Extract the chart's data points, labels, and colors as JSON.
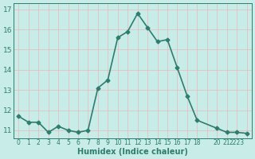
{
  "x": [
    0,
    1,
    2,
    3,
    4,
    5,
    6,
    7,
    8,
    9,
    10,
    11,
    12,
    13,
    14,
    15,
    16,
    17,
    18,
    20,
    21,
    22,
    23
  ],
  "y": [
    11.7,
    11.4,
    11.4,
    10.9,
    11.2,
    11.0,
    10.9,
    11.0,
    13.1,
    13.5,
    15.6,
    15.9,
    16.8,
    16.1,
    15.4,
    15.5,
    14.1,
    12.7,
    11.5,
    11.1,
    10.9,
    10.9,
    10.85
  ],
  "yticks": [
    11,
    12,
    13,
    14,
    15,
    16,
    17
  ],
  "ylim": [
    10.6,
    17.3
  ],
  "xlim": [
    -0.5,
    23.5
  ],
  "xlabel": "Humidex (Indice chaleur)",
  "line_color": "#2e7d6e",
  "marker": "D",
  "marker_size": 2.5,
  "bg_color": "#c8ece8",
  "grid_color": "#e8b8b8",
  "tick_color": "#2e7d6e",
  "label_color": "#2e7d6e",
  "line_width": 1.2
}
